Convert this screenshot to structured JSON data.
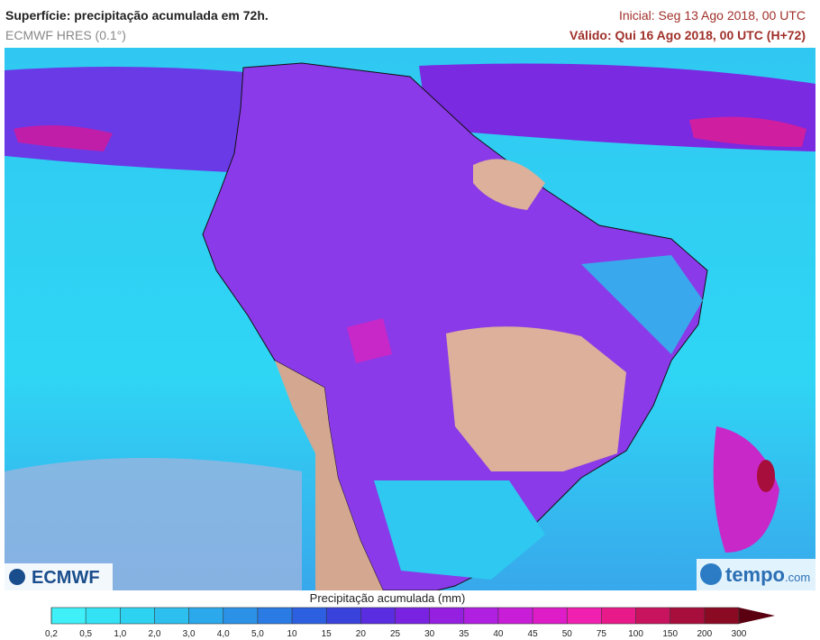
{
  "header": {
    "title": "Superfície: precipitação acumulada em 72h.",
    "model": "ECMWF HRES (0.1°)",
    "initial": "Inicial: Seg 13 Ago 2018, 00 UTC",
    "valid": "Válido: Qui 16 Ago 2018, 00 UTC (H+72)"
  },
  "logos": {
    "left": "ECMWF",
    "right_brand": "tempo",
    "right_suffix": ".com"
  },
  "legend": {
    "title": "Precipitação acumulada (mm)",
    "labels": [
      "0,2",
      "0,5",
      "1,0",
      "2,0",
      "3,0",
      "4,0",
      "5,0",
      "10",
      "15",
      "20",
      "25",
      "30",
      "35",
      "40",
      "45",
      "50",
      "75",
      "100",
      "150",
      "200",
      "300"
    ],
    "colors": [
      "#3ff0f8",
      "#33e2f5",
      "#2ed2f1",
      "#2dc0ee",
      "#2ba9ec",
      "#2b92e8",
      "#2a7be4",
      "#2c60e0",
      "#3a42dc",
      "#5a2ee0",
      "#7a22e2",
      "#9520e0",
      "#b020e0",
      "#c81ed8",
      "#de1cc8",
      "#f020b0",
      "#e81a8a",
      "#c8145e",
      "#a80e3c",
      "#8a0a24",
      "#5a0010"
    ]
  }
}
